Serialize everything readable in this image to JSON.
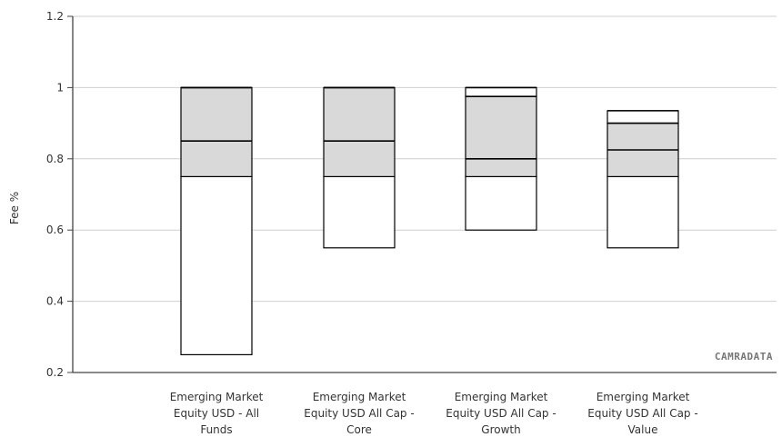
{
  "chart_data": {
    "type": "box",
    "ylabel": "Fee %",
    "ylim": [
      0.2,
      1.2
    ],
    "yticks": [
      "0.2",
      "0.4",
      "0.6",
      "0.8",
      "1",
      "1.2"
    ],
    "grid": true,
    "watermark": "CAMRADATA",
    "categories": [
      [
        "Emerging Market",
        "Equity USD - All",
        "Funds"
      ],
      [
        "Emerging Market",
        "Equity USD All Cap -",
        "Core"
      ],
      [
        "Emerging Market",
        "Equity USD All Cap -",
        "Growth"
      ],
      [
        "Emerging Market",
        "Equity USD All Cap -",
        "Value"
      ]
    ],
    "boxes": [
      {
        "min": 0.25,
        "q1": 0.75,
        "median": 0.85,
        "q3": 1.0,
        "max": 1.0
      },
      {
        "min": 0.55,
        "q1": 0.75,
        "median": 0.85,
        "q3": 1.0,
        "max": 1.0
      },
      {
        "min": 0.6,
        "q1": 0.75,
        "median": 0.8,
        "q3": 0.975,
        "max": 1.0
      },
      {
        "min": 0.55,
        "q1": 0.75,
        "median": 0.825,
        "q3": 0.9,
        "max": 0.935
      }
    ],
    "colors": {
      "iqr_fill": "#d9d9d9",
      "outer_fill": "#ffffff",
      "stroke": "#000000"
    }
  }
}
